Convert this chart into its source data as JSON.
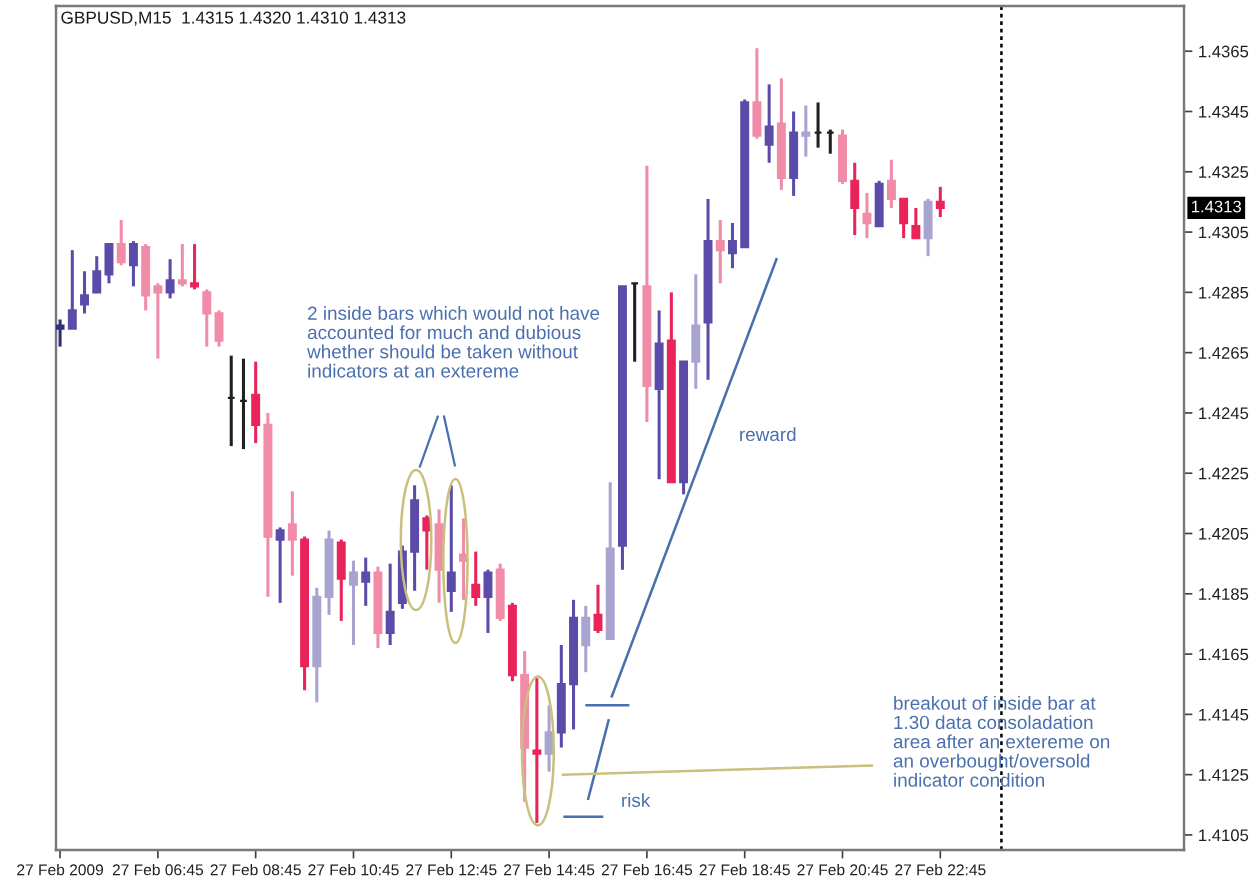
{
  "chart_data": {
    "type": "candlestick",
    "title": "GBPUSD,M15  1.4315 1.4320 1.4310 1.4313",
    "x": [
      "2009-02-27T04:45",
      "2009-02-27T05:00",
      "2009-02-27T05:15",
      "2009-02-27T05:30",
      "2009-02-27T05:45",
      "2009-02-27T06:00",
      "2009-02-27T06:15",
      "2009-02-27T06:30",
      "2009-02-27T06:45",
      "2009-02-27T07:00",
      "2009-02-27T07:15",
      "2009-02-27T07:30",
      "2009-02-27T07:45",
      "2009-02-27T08:00",
      "2009-02-27T08:15",
      "2009-02-27T08:30",
      "2009-02-27T08:45",
      "2009-02-27T09:00",
      "2009-02-27T09:15",
      "2009-02-27T09:30",
      "2009-02-27T09:45",
      "2009-02-27T10:00",
      "2009-02-27T10:15",
      "2009-02-27T10:30",
      "2009-02-27T10:45",
      "2009-02-27T11:00",
      "2009-02-27T11:15",
      "2009-02-27T11:30",
      "2009-02-27T11:45",
      "2009-02-27T12:00",
      "2009-02-27T12:15",
      "2009-02-27T12:30",
      "2009-02-27T12:45",
      "2009-02-27T13:00",
      "2009-02-27T13:15",
      "2009-02-27T13:30",
      "2009-02-27T13:45",
      "2009-02-27T14:00",
      "2009-02-27T14:15",
      "2009-02-27T14:30",
      "2009-02-27T14:45",
      "2009-02-27T15:00",
      "2009-02-27T15:15",
      "2009-02-27T15:30",
      "2009-02-27T15:45",
      "2009-02-27T16:00",
      "2009-02-27T16:15",
      "2009-02-27T16:30",
      "2009-02-27T16:45",
      "2009-02-27T17:00",
      "2009-02-27T17:15",
      "2009-02-27T17:30",
      "2009-02-27T17:45",
      "2009-02-27T18:00",
      "2009-02-27T18:15",
      "2009-02-27T18:30",
      "2009-02-27T18:45",
      "2009-02-27T19:00",
      "2009-02-27T19:15",
      "2009-02-27T19:30",
      "2009-02-27T19:45",
      "2009-02-27T20:00",
      "2009-02-27T20:15",
      "2009-02-27T20:30",
      "2009-02-27T20:45",
      "2009-02-27T21:00",
      "2009-02-27T21:15",
      "2009-02-27T21:30",
      "2009-02-27T21:45",
      "2009-02-27T22:00",
      "2009-02-27T22:15",
      "2009-02-27T22:30",
      "2009-02-27T22:45"
    ],
    "ohlc": [
      [
        1.4273,
        1.4276,
        1.4267,
        1.4274
      ],
      [
        1.4273,
        1.4299,
        1.4273,
        1.4279
      ],
      [
        1.4281,
        1.4292,
        1.4278,
        1.4284
      ],
      [
        1.4285,
        1.4297,
        1.4285,
        1.4292
      ],
      [
        1.4291,
        1.4301,
        1.4288,
        1.4301
      ],
      [
        1.4301,
        1.4309,
        1.4294,
        1.4295
      ],
      [
        1.4294,
        1.4302,
        1.4287,
        1.4301
      ],
      [
        1.43,
        1.4301,
        1.4279,
        1.4284
      ],
      [
        1.4287,
        1.4288,
        1.4263,
        1.4285
      ],
      [
        1.4285,
        1.4296,
        1.4283,
        1.4289
      ],
      [
        1.4289,
        1.4301,
        1.4287,
        1.4288
      ],
      [
        1.4288,
        1.4301,
        1.4286,
        1.4287
      ],
      [
        1.4285,
        1.4286,
        1.4267,
        1.4278
      ],
      [
        1.4278,
        1.4279,
        1.4267,
        1.4269
      ],
      [
        1.425,
        1.4264,
        1.4234,
        1.425
      ],
      [
        1.4249,
        1.4263,
        1.4233,
        1.4249
      ],
      [
        1.4251,
        1.4262,
        1.4235,
        1.4241
      ],
      [
        1.4241,
        1.4245,
        1.4184,
        1.4204
      ],
      [
        1.4203,
        1.4207,
        1.4182,
        1.4206
      ],
      [
        1.4208,
        1.4219,
        1.4191,
        1.4203
      ],
      [
        1.4203,
        1.4204,
        1.4153,
        1.4161
      ],
      [
        1.4161,
        1.4187,
        1.4149,
        1.4184
      ],
      [
        1.4184,
        1.4206,
        1.4178,
        1.4203
      ],
      [
        1.4202,
        1.4203,
        1.4176,
        1.419
      ],
      [
        1.4188,
        1.4196,
        1.4168,
        1.4192
      ],
      [
        1.4189,
        1.4197,
        1.4181,
        1.4192
      ],
      [
        1.4192,
        1.4194,
        1.4167,
        1.4172
      ],
      [
        1.4172,
        1.4195,
        1.4168,
        1.4179
      ],
      [
        1.4182,
        1.4201,
        1.418,
        1.4199
      ],
      [
        1.4199,
        1.4221,
        1.4186,
        1.4216
      ],
      [
        1.421,
        1.4211,
        1.4193,
        1.4206
      ],
      [
        1.4208,
        1.4213,
        1.4182,
        1.4193
      ],
      [
        1.4186,
        1.4221,
        1.4179,
        1.4192
      ],
      [
        1.4198,
        1.421,
        1.4183,
        1.4196
      ],
      [
        1.4188,
        1.4199,
        1.4181,
        1.4184
      ],
      [
        1.4184,
        1.4193,
        1.4172,
        1.4192
      ],
      [
        1.4193,
        1.4195,
        1.4176,
        1.4177
      ],
      [
        1.4181,
        1.4182,
        1.4156,
        1.4158
      ],
      [
        1.4158,
        1.4166,
        1.4116,
        1.4134
      ],
      [
        1.4133,
        1.4157,
        1.4109,
        1.4132
      ],
      [
        1.4132,
        1.4148,
        1.4126,
        1.4139
      ],
      [
        1.4139,
        1.4168,
        1.4134,
        1.4155
      ],
      [
        1.4155,
        1.4183,
        1.414,
        1.4177
      ],
      [
        1.4168,
        1.4181,
        1.4159,
        1.4177
      ],
      [
        1.4178,
        1.4188,
        1.4172,
        1.4173
      ],
      [
        1.417,
        1.4222,
        1.417,
        1.42
      ],
      [
        1.4201,
        1.4287,
        1.4193,
        1.4287
      ],
      [
        1.4288,
        1.4288,
        1.4262,
        1.4288
      ],
      [
        1.4287,
        1.4327,
        1.4242,
        1.4254
      ],
      [
        1.4253,
        1.4279,
        1.4223,
        1.4268
      ],
      [
        1.4269,
        1.4285,
        1.4222,
        1.4222
      ],
      [
        1.4222,
        1.4262,
        1.4218,
        1.4262
      ],
      [
        1.4262,
        1.4291,
        1.4253,
        1.4274
      ],
      [
        1.4275,
        1.4316,
        1.4256,
        1.4302
      ],
      [
        1.4302,
        1.4309,
        1.4288,
        1.4299
      ],
      [
        1.4298,
        1.4308,
        1.4293,
        1.4302
      ],
      [
        1.43,
        1.4349,
        1.43,
        1.4348
      ],
      [
        1.4348,
        1.4366,
        1.4336,
        1.4337
      ],
      [
        1.4334,
        1.4354,
        1.4328,
        1.434
      ],
      [
        1.4341,
        1.4356,
        1.4319,
        1.4323
      ],
      [
        1.4323,
        1.4345,
        1.4317,
        1.4338
      ],
      [
        1.4337,
        1.4347,
        1.433,
        1.4338
      ],
      [
        1.4338,
        1.4348,
        1.4333,
        1.4338
      ],
      [
        1.4338,
        1.4339,
        1.4331,
        1.4338
      ],
      [
        1.4337,
        1.4339,
        1.4321,
        1.4322
      ],
      [
        1.4322,
        1.4328,
        1.4304,
        1.4313
      ],
      [
        1.4311,
        1.4318,
        1.4303,
        1.4308
      ],
      [
        1.4307,
        1.4322,
        1.4307,
        1.4321
      ],
      [
        1.4322,
        1.4329,
        1.4313,
        1.4316
      ],
      [
        1.4316,
        1.4316,
        1.4303,
        1.4308
      ],
      [
        1.4307,
        1.4313,
        1.4303,
        1.4303
      ],
      [
        1.4303,
        1.4316,
        1.4297,
        1.4315
      ],
      [
        1.4315,
        1.432,
        1.431,
        1.4313
      ]
    ],
    "colors": [
      "#30307a",
      "#5a4ca8",
      "#5a4ca8",
      "#5a4ca8",
      "#5a4ca8",
      "#f08ca8",
      "#5a4ca8",
      "#f08ca8",
      "#f08ca8",
      "#5a4ca8",
      "#f08ca8",
      "#e8245a",
      "#f08ca8",
      "#f08ca8",
      "#202020",
      "#202020",
      "#e8245a",
      "#f08ca8",
      "#5a4ca8",
      "#f08ca8",
      "#e8245a",
      "#a8a4d0",
      "#a8a4d0",
      "#e8245a",
      "#a8a4d0",
      "#5a4ca8",
      "#f08ca8",
      "#5a4ca8",
      "#5a4ca8",
      "#5a4ca8",
      "#e8245a",
      "#f08ca8",
      "#5a4ca8",
      "#f08ca8",
      "#e8245a",
      "#5a4ca8",
      "#f08ca8",
      "#e8245a",
      "#f08ca8",
      "#e8245a",
      "#a8a4d0",
      "#5a4ca8",
      "#5a4ca8",
      "#a8a4d0",
      "#e8245a",
      "#a8a4d0",
      "#5a4ca8",
      "#202020",
      "#f08ca8",
      "#5a4ca8",
      "#e8245a",
      "#5a4ca8",
      "#a8a4d0",
      "#5a4ca8",
      "#f08ca8",
      "#5a4ca8",
      "#5a4ca8",
      "#f08ca8",
      "#5a4ca8",
      "#f08ca8",
      "#5a4ca8",
      "#a8a4d0",
      "#202020",
      "#202020",
      "#f08ca8",
      "#e8245a",
      "#f08ca8",
      "#5a4ca8",
      "#f08ca8",
      "#e8245a",
      "#e8245a",
      "#a8a4d0",
      "#e8245a"
    ],
    "series": [
      {
        "type": "line",
        "color": "#4a6fae",
        "x": [
          "2009-02-27T16:02",
          "2009-02-27T19:24"
        ],
        "values": [
          1.4151,
          1.4296
        ]
      },
      {
        "type": "line",
        "color": "#4a6fae",
        "x": [
          "2009-02-27T15:33",
          "2009-02-27T15:58"
        ],
        "values": [
          1.4117,
          1.4143
        ]
      },
      {
        "type": "line",
        "color": "#4a6fae",
        "x": [
          "2009-02-27T15:31",
          "2009-02-27T16:22"
        ],
        "values": [
          1.4148,
          1.4148
        ]
      },
      {
        "type": "line",
        "color": "#4a6fae",
        "x": [
          "2009-02-27T15:04",
          "2009-02-27T15:50"
        ],
        "values": [
          1.4111,
          1.4111
        ]
      },
      {
        "type": "line",
        "color": "#c8c07c",
        "x": [
          "2009-02-27T15:02",
          "2009-02-27T21:21"
        ],
        "values": [
          1.4125,
          1.4128
        ]
      }
    ],
    "xlim": [
      "2009-02-27T04:40",
      "2009-02-28T03:44"
    ],
    "xticks": [
      {
        "value": "2009-02-27T04:45",
        "label": "27 Feb 2009"
      },
      {
        "value": "2009-02-27T06:45",
        "label": "27 Feb 06:45"
      },
      {
        "value": "2009-02-27T08:45",
        "label": "27 Feb 08:45"
      },
      {
        "value": "2009-02-27T10:45",
        "label": "27 Feb 10:45"
      },
      {
        "value": "2009-02-27T12:45",
        "label": "27 Feb 12:45"
      },
      {
        "value": "2009-02-27T14:45",
        "label": "27 Feb 14:45"
      },
      {
        "value": "2009-02-27T16:45",
        "label": "27 Feb 16:45"
      },
      {
        "value": "2009-02-27T18:45",
        "label": "27 Feb 18:45"
      },
      {
        "value": "2009-02-27T20:45",
        "label": "27 Feb 20:45"
      },
      {
        "value": "2009-02-27T22:45",
        "label": "27 Feb 22:45"
      }
    ],
    "ylim": [
      1.41,
      1.438
    ],
    "yticks": [
      1.4105,
      1.4125,
      1.4145,
      1.4165,
      1.4185,
      1.4205,
      1.4225,
      1.4245,
      1.4265,
      1.4285,
      1.4305,
      1.4325,
      1.4345,
      1.4365
    ],
    "ref_lines": [
      {
        "axis": "x",
        "value": "2009-02-28T00:00",
        "line_style": "dotted",
        "color": "#000000"
      }
    ],
    "annotations": [
      "2 inside bars which would not have\naccounted for much and dubious\nwhether should be taken without\nindicators at an extereme",
      "reward",
      "risk",
      "breakout of inside bar at\n1.30 data consoladation\narea after an extereme on\nan overbought/oversold\nindicator condition",
      {
        "text": "1.4313",
        "y": 1.4313
      }
    ]
  }
}
